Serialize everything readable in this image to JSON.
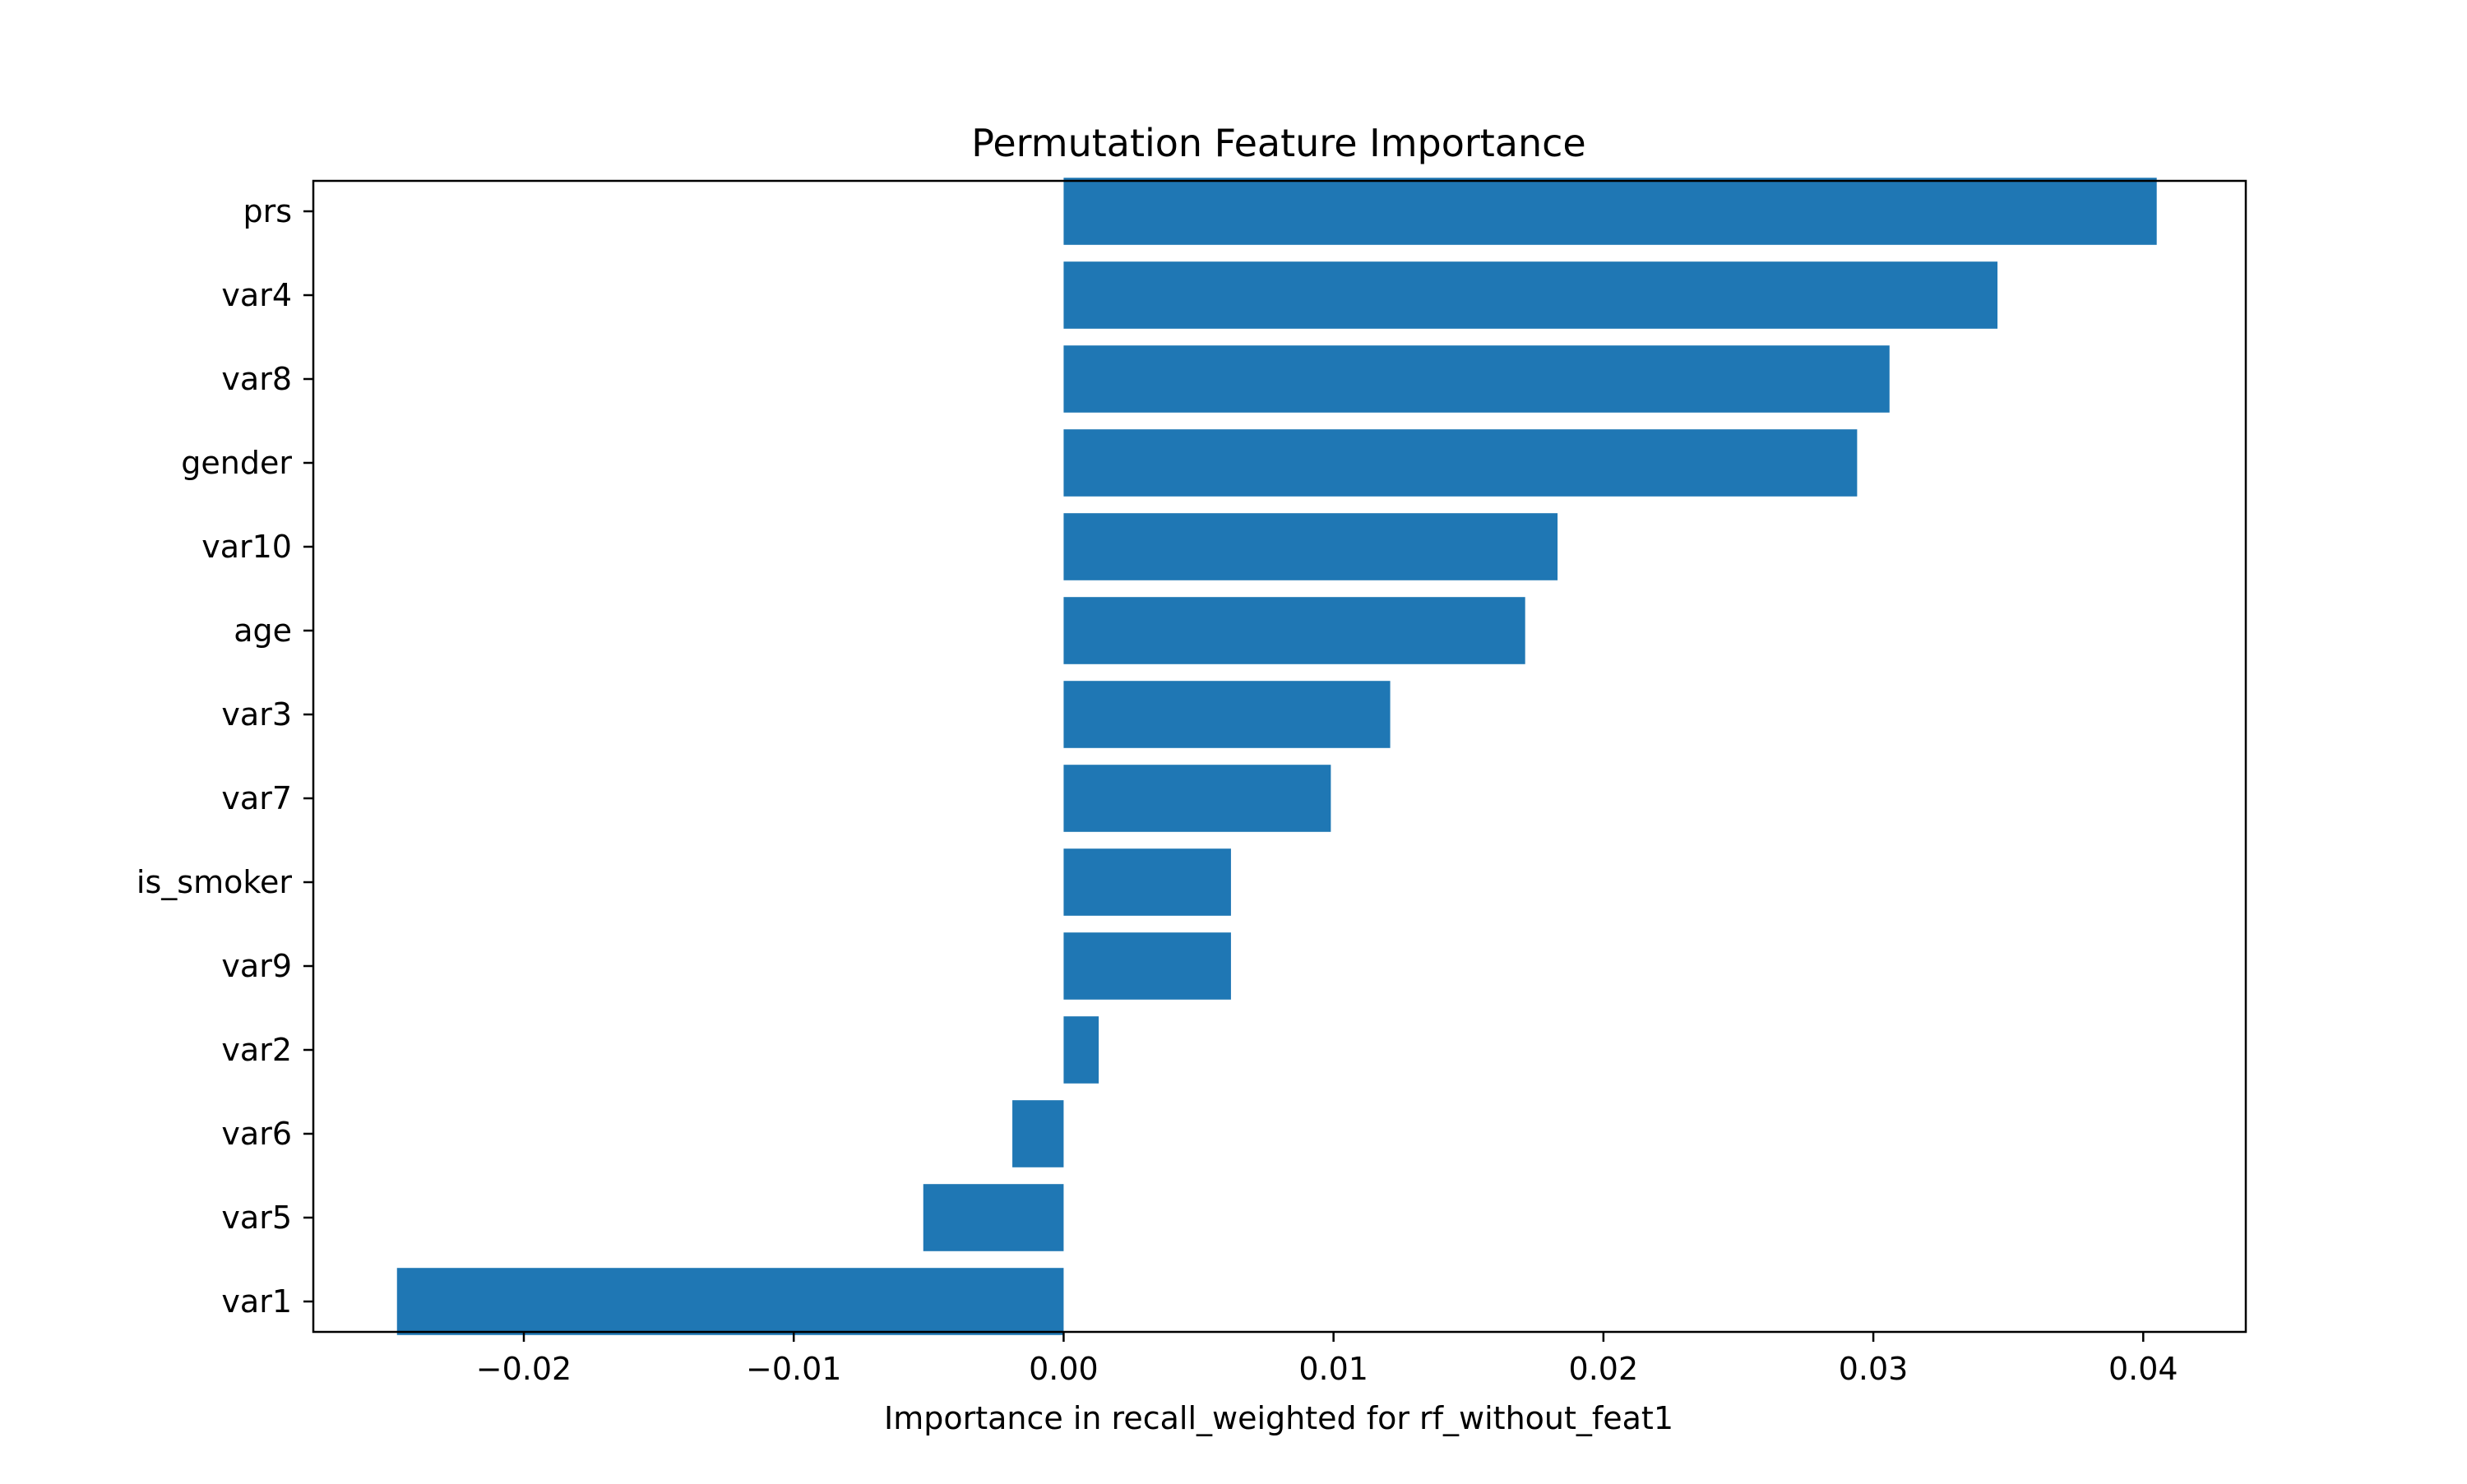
{
  "chart_data": {
    "type": "bar",
    "orientation": "horizontal",
    "title": "Permutation Feature Importance",
    "xlabel": "Importance in recall_weighted for rf_without_feat1",
    "ylabel": "",
    "categories": [
      "prs",
      "var4",
      "var8",
      "gender",
      "var10",
      "age",
      "var3",
      "var7",
      "is_smoker",
      "var9",
      "var2",
      "var6",
      "var5",
      "var1"
    ],
    "values": [
      0.0405,
      0.0346,
      0.0306,
      0.0294,
      0.0183,
      0.0171,
      0.0121,
      0.0099,
      0.0062,
      0.0062,
      0.0013,
      -0.0019,
      -0.0052,
      -0.0247
    ],
    "xlim": [
      -0.0278,
      0.0438
    ],
    "xticks": [
      -0.02,
      -0.01,
      0.0,
      0.01,
      0.02,
      0.03,
      0.04
    ],
    "xtick_labels": [
      "−0.02",
      "−0.01",
      "0.00",
      "0.01",
      "0.02",
      "0.03",
      "0.04"
    ],
    "grid": false,
    "legend": "none",
    "bar_color": "#1f77b4"
  }
}
